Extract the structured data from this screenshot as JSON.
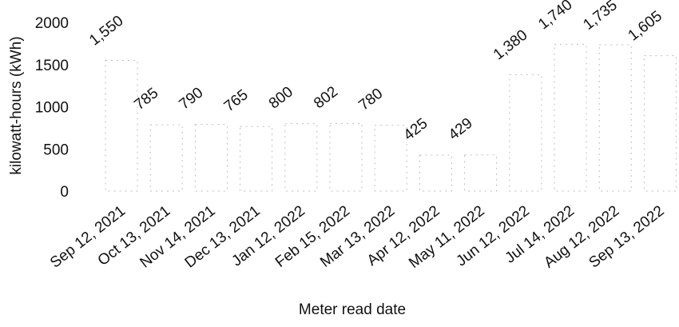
{
  "chart_data": {
    "type": "bar",
    "categories": [
      "Sep 12, 2021",
      "Oct 13, 2021",
      "Nov 14, 2021",
      "Dec 13, 2021",
      "Jan 12, 2022",
      "Feb 15, 2022",
      "Mar 13, 2022",
      "Apr 12, 2022",
      "May 11, 2022",
      "Jun 12, 2022",
      "Jul 14, 2022",
      "Aug 12, 2022",
      "Sep 13, 2022"
    ],
    "values": [
      1550,
      785,
      790,
      765,
      800,
      802,
      780,
      425,
      429,
      1380,
      1740,
      1735,
      1605
    ],
    "data_labels": [
      "1,550",
      "785",
      "790",
      "765",
      "800",
      "802",
      "780",
      "425",
      "429",
      "1,380",
      "1,740",
      "1,735",
      "1,605"
    ],
    "xlabel": "Meter read date",
    "ylabel": "kilowatt-hours (kWh)",
    "ylim": [
      0,
      2000
    ],
    "yticks": [
      0,
      500,
      1000,
      1500,
      2000
    ],
    "ytick_labels": [
      "0",
      "500",
      "1000",
      "1500",
      "2000"
    ],
    "grid": false,
    "legend": "none"
  }
}
